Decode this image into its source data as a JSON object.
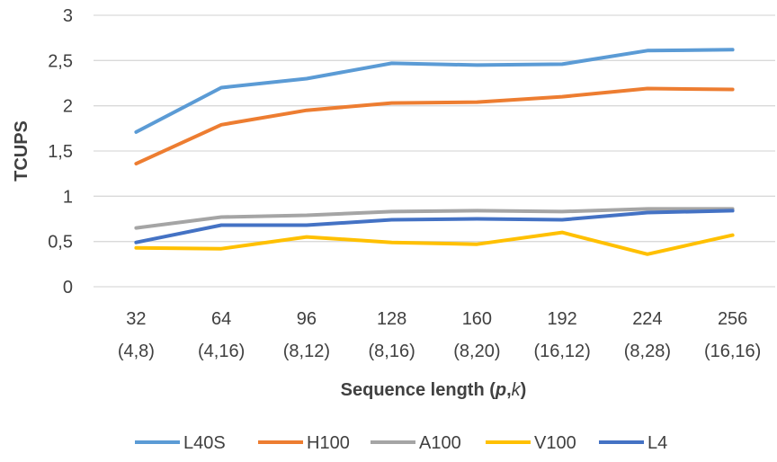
{
  "chart_data": {
    "type": "line",
    "title": "",
    "xlabel": {
      "prefix": "Sequence length (",
      "p": "p",
      "sep": ",",
      "k": "k",
      "suffix": ")"
    },
    "ylabel": "TCUPS",
    "ylim": [
      0,
      3
    ],
    "yticks": [
      "0",
      "0,5",
      "1",
      "1,5",
      "2",
      "2,5",
      "3"
    ],
    "ytick_values": [
      0,
      0.5,
      1,
      1.5,
      2,
      2.5,
      3
    ],
    "categories": [
      "32",
      "64",
      "96",
      "128",
      "160",
      "192",
      "224",
      "256"
    ],
    "subcategories": [
      "(4,8)",
      "(4,16)",
      "(8,12)",
      "(8,16)",
      "(8,20)",
      "(16,12)",
      "(8,28)",
      "(16,16)"
    ],
    "grid": true,
    "legend_position": "bottom",
    "series": [
      {
        "name": "L40S",
        "color": "#5B9BD5",
        "values": [
          1.71,
          2.2,
          2.3,
          2.47,
          2.45,
          2.46,
          2.61,
          2.62
        ]
      },
      {
        "name": "H100",
        "color": "#ED7D31",
        "values": [
          1.36,
          1.79,
          1.95,
          2.03,
          2.04,
          2.1,
          2.19,
          2.18
        ]
      },
      {
        "name": "A100",
        "color": "#A5A5A5",
        "values": [
          0.65,
          0.77,
          0.79,
          0.83,
          0.84,
          0.83,
          0.86,
          0.86
        ]
      },
      {
        "name": "V100",
        "color": "#FFC000",
        "values": [
          0.43,
          0.42,
          0.55,
          0.49,
          0.47,
          0.6,
          0.36,
          0.57
        ]
      },
      {
        "name": "L4",
        "color": "#4472C4",
        "values": [
          0.49,
          0.68,
          0.68,
          0.74,
          0.75,
          0.74,
          0.82,
          0.84
        ]
      }
    ]
  }
}
